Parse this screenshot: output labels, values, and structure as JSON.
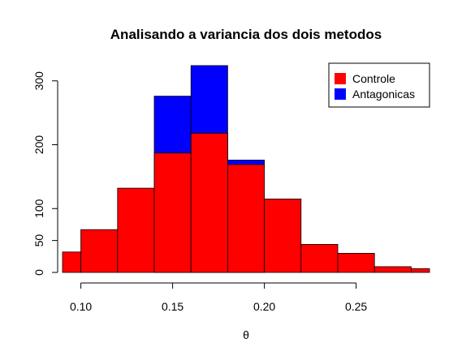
{
  "chart_data": {
    "type": "bar",
    "title": "Analisando a variancia dos dois metodos",
    "xlabel": "θ",
    "ylabel": "",
    "xlim": [
      0.09,
      0.29
    ],
    "ylim": [
      0,
      320
    ],
    "x_ticks": [
      "0.10",
      "0.15",
      "0.20",
      "0.25"
    ],
    "y_ticks": [
      "0",
      "50",
      "100",
      "200",
      "300"
    ],
    "legend_position": "top-right",
    "colors": {
      "Controle": "#ff0000",
      "Antagonicas": "#0000ff"
    },
    "series": [
      {
        "name": "Antagonicas",
        "bins": [
          [
            0.14,
            0.16,
            276
          ],
          [
            0.16,
            0.18,
            324
          ],
          [
            0.18,
            0.2,
            176
          ]
        ]
      },
      {
        "name": "Controle",
        "bins": [
          [
            0.09,
            0.1,
            32
          ],
          [
            0.1,
            0.12,
            67
          ],
          [
            0.12,
            0.14,
            132
          ],
          [
            0.14,
            0.16,
            187
          ],
          [
            0.16,
            0.18,
            218
          ],
          [
            0.18,
            0.2,
            169
          ],
          [
            0.2,
            0.22,
            115
          ],
          [
            0.22,
            0.24,
            44
          ],
          [
            0.24,
            0.26,
            30
          ],
          [
            0.26,
            0.28,
            9
          ],
          [
            0.28,
            0.29,
            6
          ]
        ]
      }
    ]
  }
}
